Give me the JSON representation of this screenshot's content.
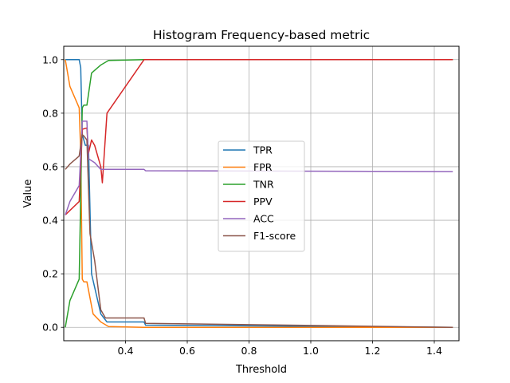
{
  "chart_data": {
    "type": "line",
    "title": "Histogram Frequency-based metric",
    "xlabel": "Threshold",
    "ylabel": "Value",
    "xlim": [
      0.2,
      1.48
    ],
    "ylim": [
      -0.05,
      1.05
    ],
    "xticks": [
      0.4,
      0.6,
      0.8,
      1.0,
      1.2,
      1.4
    ],
    "xtick_labels": [
      "0.4",
      "0.6",
      "0.8",
      "1.0",
      "1.2",
      "1.4"
    ],
    "yticks": [
      0.0,
      0.2,
      0.4,
      0.6,
      0.8,
      1.0
    ],
    "ytick_labels": [
      "0.0",
      "0.2",
      "0.4",
      "0.6",
      "0.8",
      "1.0"
    ],
    "grid": true,
    "legend_position": "center",
    "series": [
      {
        "name": "TPR",
        "color": "#1f77b4",
        "points": [
          [
            0.205,
            1.0
          ],
          [
            0.25,
            1.0
          ],
          [
            0.255,
            0.97
          ],
          [
            0.26,
            0.72
          ],
          [
            0.265,
            0.7
          ],
          [
            0.27,
            0.68
          ],
          [
            0.28,
            0.68
          ],
          [
            0.29,
            0.2
          ],
          [
            0.3,
            0.15
          ],
          [
            0.32,
            0.05
          ],
          [
            0.34,
            0.02
          ],
          [
            0.46,
            0.02
          ],
          [
            0.465,
            0.008
          ],
          [
            1.46,
            0.0
          ]
        ]
      },
      {
        "name": "FPR",
        "color": "#ff7f0e",
        "points": [
          [
            0.205,
            1.0
          ],
          [
            0.22,
            0.9
          ],
          [
            0.25,
            0.82
          ],
          [
            0.255,
            0.65
          ],
          [
            0.26,
            0.18
          ],
          [
            0.265,
            0.17
          ],
          [
            0.275,
            0.17
          ],
          [
            0.295,
            0.05
          ],
          [
            0.32,
            0.02
          ],
          [
            0.345,
            0.003
          ],
          [
            0.46,
            0.0
          ],
          [
            1.46,
            0.0
          ]
        ]
      },
      {
        "name": "TNR",
        "color": "#2ca02c",
        "points": [
          [
            0.205,
            0.0
          ],
          [
            0.22,
            0.1
          ],
          [
            0.25,
            0.18
          ],
          [
            0.26,
            0.82
          ],
          [
            0.265,
            0.83
          ],
          [
            0.275,
            0.83
          ],
          [
            0.28,
            0.87
          ],
          [
            0.29,
            0.95
          ],
          [
            0.32,
            0.98
          ],
          [
            0.345,
            0.997
          ],
          [
            0.46,
            1.0
          ],
          [
            1.46,
            1.0
          ]
        ]
      },
      {
        "name": "PPV",
        "color": "#d62728",
        "points": [
          [
            0.205,
            0.42
          ],
          [
            0.25,
            0.47
          ],
          [
            0.26,
            0.74
          ],
          [
            0.275,
            0.745
          ],
          [
            0.28,
            0.65
          ],
          [
            0.29,
            0.7
          ],
          [
            0.3,
            0.68
          ],
          [
            0.32,
            0.6
          ],
          [
            0.325,
            0.54
          ],
          [
            0.34,
            0.8
          ],
          [
            0.46,
            1.0
          ],
          [
            1.46,
            1.0
          ]
        ]
      },
      {
        "name": "ACC",
        "color": "#9467bd",
        "points": [
          [
            0.205,
            0.42
          ],
          [
            0.22,
            0.47
          ],
          [
            0.25,
            0.53
          ],
          [
            0.26,
            0.77
          ],
          [
            0.275,
            0.77
          ],
          [
            0.28,
            0.63
          ],
          [
            0.3,
            0.615
          ],
          [
            0.32,
            0.59
          ],
          [
            0.34,
            0.59
          ],
          [
            0.46,
            0.59
          ],
          [
            0.465,
            0.585
          ],
          [
            1.46,
            0.582
          ]
        ]
      },
      {
        "name": "F1-score",
        "color": "#8c564b",
        "points": [
          [
            0.205,
            0.59
          ],
          [
            0.22,
            0.61
          ],
          [
            0.25,
            0.64
          ],
          [
            0.26,
            0.72
          ],
          [
            0.265,
            0.715
          ],
          [
            0.275,
            0.7
          ],
          [
            0.285,
            0.35
          ],
          [
            0.3,
            0.25
          ],
          [
            0.32,
            0.065
          ],
          [
            0.335,
            0.035
          ],
          [
            0.46,
            0.035
          ],
          [
            0.465,
            0.015
          ],
          [
            1.46,
            0.0
          ]
        ]
      }
    ]
  }
}
